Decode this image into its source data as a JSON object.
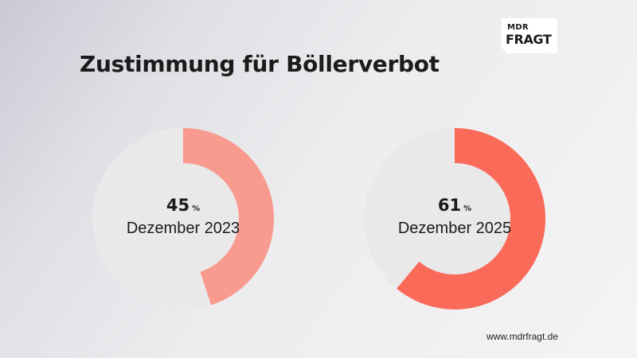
{
  "title": "Zustimmung für Böllerverbot",
  "logo": {
    "line1": "MDR",
    "line2": "FRAGT"
  },
  "footer": "www.mdrfragt.de",
  "colors": {
    "track": "#e9e9ea",
    "series_2023": "#f99a8e",
    "series_2025": "#fa6a59"
  },
  "chart_data": {
    "type": "pie",
    "subtype": "donut",
    "unit": "%",
    "title": "Zustimmung für Böllerverbot",
    "series": [
      {
        "name": "Dezember 2023",
        "value": 45,
        "max": 100
      },
      {
        "name": "Dezember 2025",
        "value": 61,
        "max": 100
      }
    ]
  }
}
